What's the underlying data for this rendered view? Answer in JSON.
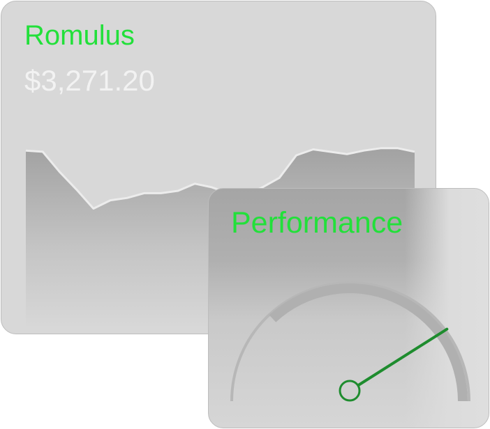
{
  "stock_widget": {
    "title": "Romulus",
    "price": "$3,271.20",
    "accent_color": "#22e03a",
    "price_color": "#f2f2f2",
    "sparkline_values": [
      74,
      73,
      56,
      41,
      25,
      32,
      34,
      38,
      38,
      40,
      46,
      43,
      38,
      36,
      43,
      51,
      70,
      75,
      73,
      71,
      74,
      76,
      76,
      73
    ]
  },
  "gauge_widget": {
    "title": "Performance",
    "accent_color": "#22e03a",
    "needle_color": "#1e8c2e",
    "value_fraction": 0.82
  }
}
